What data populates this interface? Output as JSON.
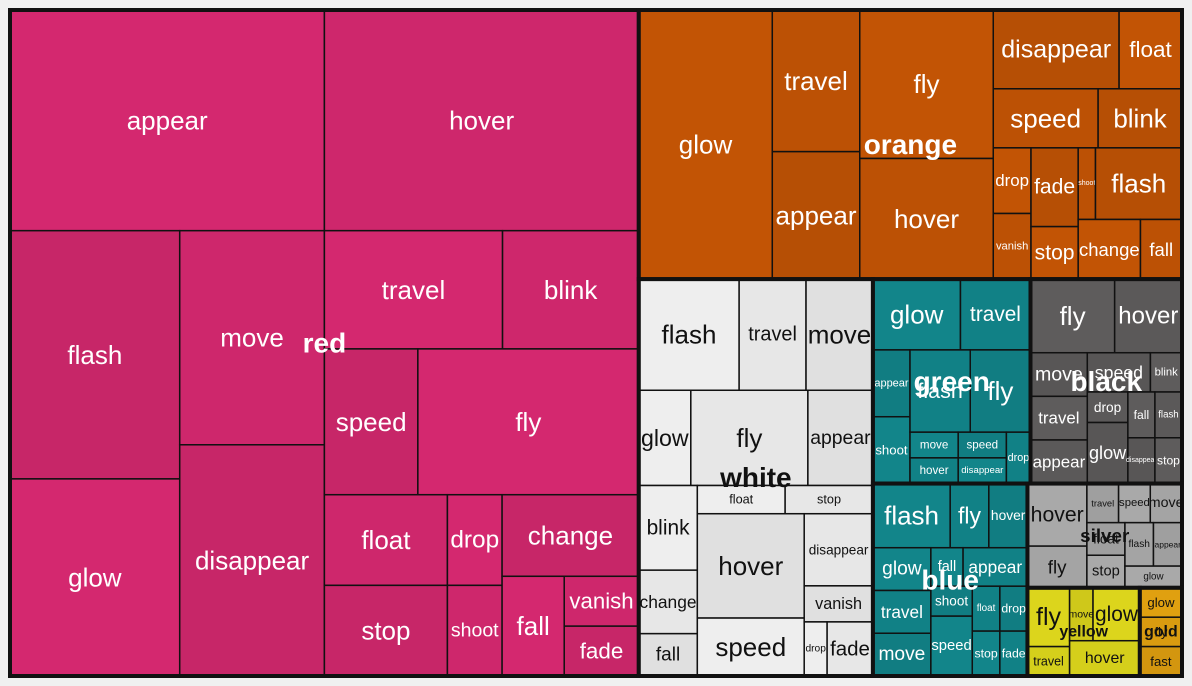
{
  "chart_data": {
    "type": "treemap",
    "colors": {
      "red": "#d4286f",
      "orange": "#c25405",
      "white": "#eeeeee",
      "green": "#12858a",
      "black": "#5e5c5c",
      "blue": "#12858a",
      "silver": "#a9a9a9",
      "yellow": "#dcd51c",
      "gold": "#e0a010"
    },
    "groups": [
      {
        "name": "red",
        "items": [
          {
            "name": "appear",
            "value": 56
          },
          {
            "name": "hover",
            "value": 56
          },
          {
            "name": "flash",
            "value": 34
          },
          {
            "name": "glow",
            "value": 27
          },
          {
            "name": "move",
            "value": 25
          },
          {
            "name": "disappear",
            "value": 27
          },
          {
            "name": "travel",
            "value": 17
          },
          {
            "name": "blink",
            "value": 13
          },
          {
            "name": "speed",
            "value": 11
          },
          {
            "name": "fly",
            "value": 26
          },
          {
            "name": "float",
            "value": 9
          },
          {
            "name": "stop",
            "value": 9
          },
          {
            "name": "drop",
            "value": 4
          },
          {
            "name": "shoot",
            "value": 4
          },
          {
            "name": "change",
            "value": 9
          },
          {
            "name": "fall",
            "value": 5
          },
          {
            "name": "vanish",
            "value": 3
          },
          {
            "name": "fade",
            "value": 3
          }
        ]
      },
      {
        "name": "orange",
        "items": [
          {
            "name": "glow",
            "value": 29
          },
          {
            "name": "travel",
            "value": 10
          },
          {
            "name": "appear",
            "value": 9
          },
          {
            "name": "fly",
            "value": 16
          },
          {
            "name": "hover",
            "value": 13
          },
          {
            "name": "disappear",
            "value": 8
          },
          {
            "name": "float",
            "value": 4
          },
          {
            "name": "speed",
            "value": 5
          },
          {
            "name": "blink",
            "value": 4
          },
          {
            "name": "drop",
            "value": 2
          },
          {
            "name": "vanish",
            "value": 2
          },
          {
            "name": "fade",
            "value": 3
          },
          {
            "name": "stop",
            "value": 2
          },
          {
            "name": "shoot",
            "value": 1
          },
          {
            "name": "flash",
            "value": 5
          },
          {
            "name": "change",
            "value": 3
          },
          {
            "name": "fall",
            "value": 2
          }
        ]
      },
      {
        "name": "white",
        "items": [
          {
            "name": "flash",
            "value": 9
          },
          {
            "name": "travel",
            "value": 6
          },
          {
            "name": "move",
            "value": 6
          },
          {
            "name": "glow",
            "value": 4
          },
          {
            "name": "fly",
            "value": 9
          },
          {
            "name": "appear",
            "value": 5
          },
          {
            "name": "blink",
            "value": 4
          },
          {
            "name": "change",
            "value": 3
          },
          {
            "name": "fall",
            "value": 2
          },
          {
            "name": "float",
            "value": 2
          },
          {
            "name": "stop",
            "value": 2
          },
          {
            "name": "hover",
            "value": 9
          },
          {
            "name": "speed",
            "value": 5
          },
          {
            "name": "disappear",
            "value": 4
          },
          {
            "name": "vanish",
            "value": 2
          },
          {
            "name": "drop",
            "value": 1
          },
          {
            "name": "fade",
            "value": 2
          }
        ]
      },
      {
        "name": "green",
        "items": [
          {
            "name": "glow",
            "value": 5
          },
          {
            "name": "travel",
            "value": 4
          },
          {
            "name": "appear",
            "value": 2
          },
          {
            "name": "shoot",
            "value": 2
          },
          {
            "name": "flash",
            "value": 4
          },
          {
            "name": "fly",
            "value": 4
          },
          {
            "name": "move",
            "value": 1
          },
          {
            "name": "hover",
            "value": 1
          },
          {
            "name": "speed",
            "value": 1
          },
          {
            "name": "disappear",
            "value": 1
          },
          {
            "name": "drop",
            "value": 1
          }
        ]
      },
      {
        "name": "black",
        "items": [
          {
            "name": "fly",
            "value": 5
          },
          {
            "name": "hover",
            "value": 4
          },
          {
            "name": "move",
            "value": 2
          },
          {
            "name": "travel",
            "value": 2
          },
          {
            "name": "appear",
            "value": 2
          },
          {
            "name": "speed",
            "value": 2
          },
          {
            "name": "blink",
            "value": 1
          },
          {
            "name": "drop",
            "value": 1
          },
          {
            "name": "glow",
            "value": 2
          },
          {
            "name": "fall",
            "value": 1
          },
          {
            "name": "flash",
            "value": 1
          },
          {
            "name": "disappear",
            "value": 1
          },
          {
            "name": "stop",
            "value": 1
          }
        ]
      },
      {
        "name": "blue",
        "items": [
          {
            "name": "flash",
            "value": 4
          },
          {
            "name": "fly",
            "value": 2
          },
          {
            "name": "hover",
            "value": 2
          },
          {
            "name": "glow",
            "value": 2
          },
          {
            "name": "travel",
            "value": 2
          },
          {
            "name": "move",
            "value": 2
          },
          {
            "name": "fall",
            "value": 1
          },
          {
            "name": "appear",
            "value": 2
          },
          {
            "name": "shoot",
            "value": 1
          },
          {
            "name": "speed",
            "value": 2
          },
          {
            "name": "float",
            "value": 1
          },
          {
            "name": "drop",
            "value": 1
          },
          {
            "name": "stop",
            "value": 1
          },
          {
            "name": "fade",
            "value": 1
          }
        ]
      },
      {
        "name": "silver",
        "items": [
          {
            "name": "hover",
            "value": 3
          },
          {
            "name": "fly",
            "value": 2
          },
          {
            "name": "travel",
            "value": 1
          },
          {
            "name": "speed",
            "value": 1
          },
          {
            "name": "move",
            "value": 1
          },
          {
            "name": "float",
            "value": 1
          },
          {
            "name": "stop",
            "value": 1
          },
          {
            "name": "flash",
            "value": 1
          },
          {
            "name": "appear",
            "value": 1
          },
          {
            "name": "glow",
            "value": 1
          }
        ]
      },
      {
        "name": "yellow",
        "items": [
          {
            "name": "fly",
            "value": 2
          },
          {
            "name": "travel",
            "value": 1
          },
          {
            "name": "move",
            "value": 1
          },
          {
            "name": "glow",
            "value": 2
          },
          {
            "name": "hover",
            "value": 2
          }
        ]
      },
      {
        "name": "gold",
        "items": [
          {
            "name": "glow",
            "value": 1
          },
          {
            "name": "fly",
            "value": 1
          },
          {
            "name": "fast",
            "value": 1
          }
        ]
      }
    ]
  }
}
